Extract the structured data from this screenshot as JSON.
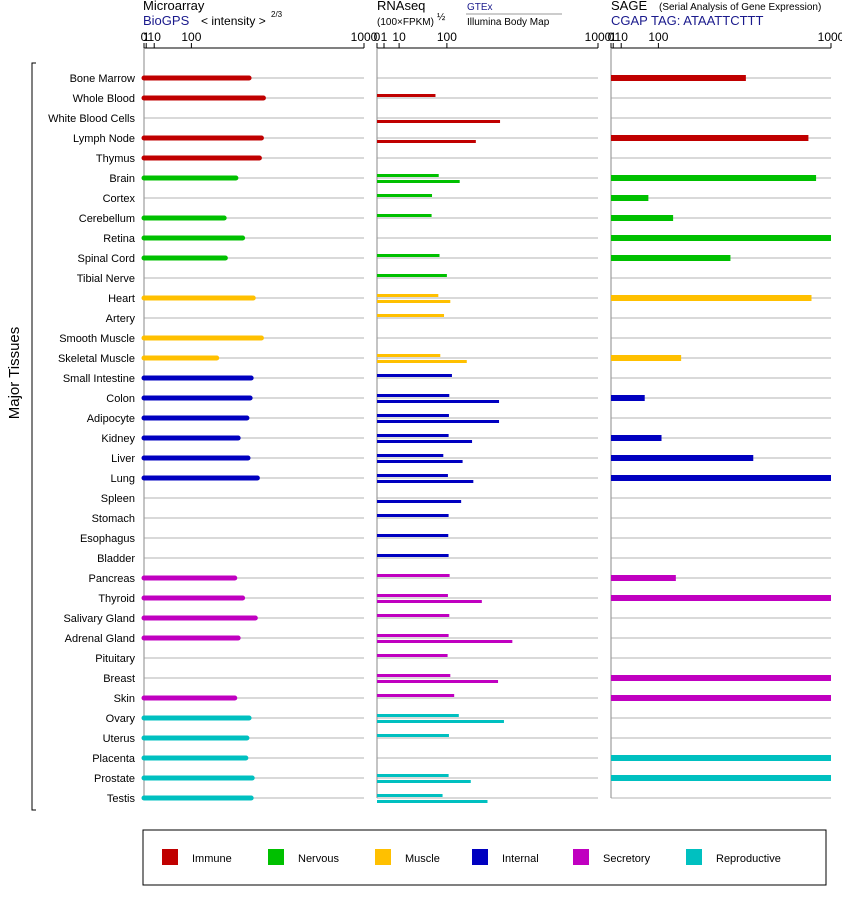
{
  "chart_data": {
    "type": "bar",
    "orientation": "horizontal",
    "y_axis_label": "Major Tissues",
    "panels": [
      {
        "id": "microarray",
        "title": "Microarray",
        "source": "BioGPS",
        "unit_label": "< intensity >",
        "unit_exponent": "2/3",
        "scale": "power-2/3",
        "xlim": [
          0,
          1000
        ],
        "ticks": [
          "0",
          "1",
          "10",
          "100",
          "1000"
        ]
      },
      {
        "id": "rnaseq",
        "title": "RNAseq",
        "unit_label": "(100×FPKM)",
        "unit_exponent": "½",
        "source_line1": "GTEx",
        "source_line2": "Illumina Body Map",
        "scale": "power-1/2",
        "xlim": [
          0,
          1000
        ],
        "ticks": [
          "0",
          "1",
          "10",
          "100",
          "1000"
        ]
      },
      {
        "id": "sage",
        "title": "SAGE",
        "subtitle": "(Serial Analysis of Gene Expression)",
        "source": "CGAP TAG: ATAATTCTTT",
        "scale": "power-2/3",
        "xlim": [
          0,
          1000
        ],
        "ticks": [
          "0",
          "1",
          "10",
          "100",
          "1000"
        ]
      }
    ],
    "groups": [
      {
        "name": "Immune",
        "color": "#c00000"
      },
      {
        "name": "Nervous",
        "color": "#00c000"
      },
      {
        "name": "Muscle",
        "color": "#ffc000"
      },
      {
        "name": "Internal",
        "color": "#0000c0"
      },
      {
        "name": "Secretory",
        "color": "#c000c0"
      },
      {
        "name": "Reproductive",
        "color": "#00c0c0"
      }
    ],
    "tissues": [
      {
        "name": "Bone Marrow",
        "group": 0,
        "microarray": 330,
        "rnaseq_gtex": null,
        "rnaseq_ibm": null,
        "sage": 480
      },
      {
        "name": "Whole Blood",
        "group": 0,
        "microarray": 400,
        "rnaseq_gtex": 70,
        "rnaseq_ibm": null,
        "sage": null
      },
      {
        "name": "White Blood Cells",
        "group": 0,
        "microarray": null,
        "rnaseq_gtex": null,
        "rnaseq_ibm": 310,
        "sage": null
      },
      {
        "name": "Lymph Node",
        "group": 0,
        "microarray": 390,
        "rnaseq_gtex": null,
        "rnaseq_ibm": 200,
        "sage": 850
      },
      {
        "name": "Thymus",
        "group": 0,
        "microarray": 380,
        "rnaseq_gtex": null,
        "rnaseq_ibm": null,
        "sage": null
      },
      {
        "name": "Brain",
        "group": 1,
        "microarray": 270,
        "rnaseq_gtex": 78,
        "rnaseq_ibm": 140,
        "sage": 900
      },
      {
        "name": "Cortex",
        "group": 1,
        "microarray": null,
        "rnaseq_gtex": 62,
        "rnaseq_ibm": null,
        "sage": 70
      },
      {
        "name": "Cerebellum",
        "group": 1,
        "microarray": 220,
        "rnaseq_gtex": 61,
        "rnaseq_ibm": null,
        "sage": 150
      },
      {
        "name": "Retina",
        "group": 1,
        "microarray": 300,
        "rnaseq_gtex": null,
        "rnaseq_ibm": null,
        "sage": 1000
      },
      {
        "name": "Spinal Cord",
        "group": 1,
        "microarray": 225,
        "rnaseq_gtex": 80,
        "rnaseq_ibm": null,
        "sage": 400
      },
      {
        "name": "Tibial Nerve",
        "group": 1,
        "microarray": null,
        "rnaseq_gtex": 100,
        "rnaseq_ibm": null,
        "sage": null
      },
      {
        "name": "Heart",
        "group": 2,
        "microarray": 350,
        "rnaseq_gtex": 77,
        "rnaseq_ibm": 110,
        "sage": 870
      },
      {
        "name": "Artery",
        "group": 2,
        "microarray": null,
        "rnaseq_gtex": 92,
        "rnaseq_ibm": null,
        "sage": null
      },
      {
        "name": "Smooth Muscle",
        "group": 2,
        "microarray": 390,
        "rnaseq_gtex": null,
        "rnaseq_ibm": null,
        "sage": null
      },
      {
        "name": "Skeletal Muscle",
        "group": 2,
        "microarray": 190,
        "rnaseq_gtex": 82,
        "rnaseq_ibm": 165,
        "sage": 180
      },
      {
        "name": "Small Intestine",
        "group": 3,
        "microarray": 340,
        "rnaseq_gtex": 115,
        "rnaseq_ibm": null,
        "sage": null
      },
      {
        "name": "Colon",
        "group": 3,
        "microarray": 335,
        "rnaseq_gtex": 107,
        "rnaseq_ibm": 305,
        "sage": 60
      },
      {
        "name": "Adipocyte",
        "group": 3,
        "microarray": 320,
        "rnaseq_gtex": 106,
        "rnaseq_ibm": 305,
        "sage": null
      },
      {
        "name": "Kidney",
        "group": 3,
        "microarray": 280,
        "rnaseq_gtex": 105,
        "rnaseq_ibm": 185,
        "sage": 110
      },
      {
        "name": "Liver",
        "group": 3,
        "microarray": 325,
        "rnaseq_gtex": 90,
        "rnaseq_ibm": 150,
        "sage": 520
      },
      {
        "name": "Lung",
        "group": 3,
        "microarray": 370,
        "rnaseq_gtex": 103,
        "rnaseq_ibm": 190,
        "sage": 1000
      },
      {
        "name": "Spleen",
        "group": 3,
        "microarray": null,
        "rnaseq_gtex": null,
        "rnaseq_ibm": 145,
        "sage": null
      },
      {
        "name": "Stomach",
        "group": 3,
        "microarray": null,
        "rnaseq_gtex": 105,
        "rnaseq_ibm": null,
        "sage": null
      },
      {
        "name": "Esophagus",
        "group": 3,
        "microarray": null,
        "rnaseq_gtex": 104,
        "rnaseq_ibm": null,
        "sage": null
      },
      {
        "name": "Bladder",
        "group": 3,
        "microarray": null,
        "rnaseq_gtex": 105,
        "rnaseq_ibm": null,
        "sage": null
      },
      {
        "name": "Pancreas",
        "group": 4,
        "microarray": 265,
        "rnaseq_gtex": 108,
        "rnaseq_ibm": null,
        "sage": 160
      },
      {
        "name": "Thyroid",
        "group": 4,
        "microarray": 300,
        "rnaseq_gtex": 103,
        "rnaseq_ibm": 225,
        "sage": 1000
      },
      {
        "name": "Salivary Gland",
        "group": 4,
        "microarray": 360,
        "rnaseq_gtex": 107,
        "rnaseq_ibm": null,
        "sage": null
      },
      {
        "name": "Adrenal Gland",
        "group": 4,
        "microarray": 280,
        "rnaseq_gtex": 105,
        "rnaseq_ibm": 375,
        "sage": null
      },
      {
        "name": "Pituitary",
        "group": 4,
        "microarray": null,
        "rnaseq_gtex": 102,
        "rnaseq_ibm": null,
        "sage": null
      },
      {
        "name": "Breast",
        "group": 4,
        "microarray": null,
        "rnaseq_gtex": 110,
        "rnaseq_ibm": 300,
        "sage": 1000
      },
      {
        "name": "Skin",
        "group": 4,
        "microarray": 265,
        "rnaseq_gtex": 122,
        "rnaseq_ibm": null,
        "sage": 1000
      },
      {
        "name": "Ovary",
        "group": 5,
        "microarray": 330,
        "rnaseq_gtex": 137,
        "rnaseq_ibm": 330,
        "sage": null
      },
      {
        "name": "Uterus",
        "group": 5,
        "microarray": 320,
        "rnaseq_gtex": 106,
        "rnaseq_ibm": null,
        "sage": null
      },
      {
        "name": "Placenta",
        "group": 5,
        "microarray": 315,
        "rnaseq_gtex": null,
        "rnaseq_ibm": null,
        "sage": 1000
      },
      {
        "name": "Prostate",
        "group": 5,
        "microarray": 345,
        "rnaseq_gtex": 105,
        "rnaseq_ibm": 180,
        "sage": 1000
      },
      {
        "name": "Testis",
        "group": 5,
        "microarray": 340,
        "rnaseq_gtex": 88,
        "rnaseq_ibm": 250,
        "sage": null
      }
    ]
  }
}
